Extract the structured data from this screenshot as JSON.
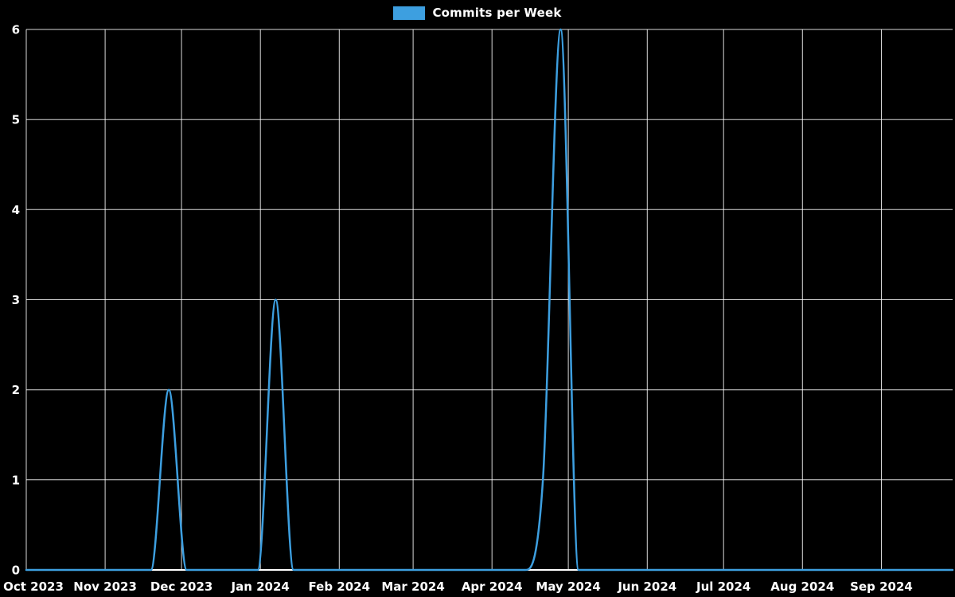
{
  "colors": {
    "background": "#000000",
    "grid": "#ffffff",
    "text": "#ffffff",
    "line": "#3d9fe0"
  },
  "chart_data": {
    "type": "line",
    "title": "Commits per Week",
    "xlabel": "",
    "ylabel": "",
    "legend_position": "top-center",
    "grid": true,
    "x_start": "2023-10-01",
    "x_end": "2024-09-29",
    "ylim": [
      0,
      6
    ],
    "y_ticks": [
      0,
      1,
      2,
      3,
      4,
      5,
      6
    ],
    "x_ticks": [
      {
        "label": "Oct 2023",
        "date": "2023-10-01"
      },
      {
        "label": "Nov 2023",
        "date": "2023-11-01"
      },
      {
        "label": "Dec 2023",
        "date": "2023-12-01"
      },
      {
        "label": "Jan 2024",
        "date": "2024-01-01"
      },
      {
        "label": "Feb 2024",
        "date": "2024-02-01"
      },
      {
        "label": "Mar 2024",
        "date": "2024-03-01"
      },
      {
        "label": "Apr 2024",
        "date": "2024-04-01"
      },
      {
        "label": "May 2024",
        "date": "2024-05-01"
      },
      {
        "label": "Jun 2024",
        "date": "2024-06-01"
      },
      {
        "label": "Jul 2024",
        "date": "2024-07-01"
      },
      {
        "label": "Aug 2024",
        "date": "2024-08-01"
      },
      {
        "label": "Sep 2024",
        "date": "2024-09-01"
      }
    ],
    "weeks": [
      "2023-10-01",
      "2023-10-08",
      "2023-10-15",
      "2023-10-22",
      "2023-10-29",
      "2023-11-05",
      "2023-11-12",
      "2023-11-19",
      "2023-11-26",
      "2023-12-03",
      "2023-12-10",
      "2023-12-17",
      "2023-12-24",
      "2023-12-31",
      "2024-01-07",
      "2024-01-14",
      "2024-01-21",
      "2024-01-28",
      "2024-02-04",
      "2024-02-11",
      "2024-02-18",
      "2024-02-25",
      "2024-03-03",
      "2024-03-10",
      "2024-03-17",
      "2024-03-24",
      "2024-03-31",
      "2024-04-07",
      "2024-04-14",
      "2024-04-21",
      "2024-04-28",
      "2024-05-05",
      "2024-05-12",
      "2024-05-19",
      "2024-05-26",
      "2024-06-02",
      "2024-06-09",
      "2024-06-16",
      "2024-06-23",
      "2024-06-30",
      "2024-07-07",
      "2024-07-14",
      "2024-07-21",
      "2024-07-28",
      "2024-08-04",
      "2024-08-11",
      "2024-08-18",
      "2024-08-25",
      "2024-09-01",
      "2024-09-08",
      "2024-09-15",
      "2024-09-22",
      "2024-09-29"
    ],
    "values": [
      0,
      0,
      0,
      0,
      0,
      0,
      0,
      0,
      2,
      0,
      0,
      0,
      0,
      0,
      3,
      0,
      0,
      0,
      0,
      0,
      0,
      0,
      0,
      0,
      0,
      0,
      0,
      0,
      0,
      1,
      6,
      0,
      0,
      0,
      0,
      0,
      0,
      0,
      0,
      0,
      0,
      0,
      0,
      0,
      0,
      0,
      0,
      0,
      0,
      0,
      0,
      0,
      0
    ]
  }
}
